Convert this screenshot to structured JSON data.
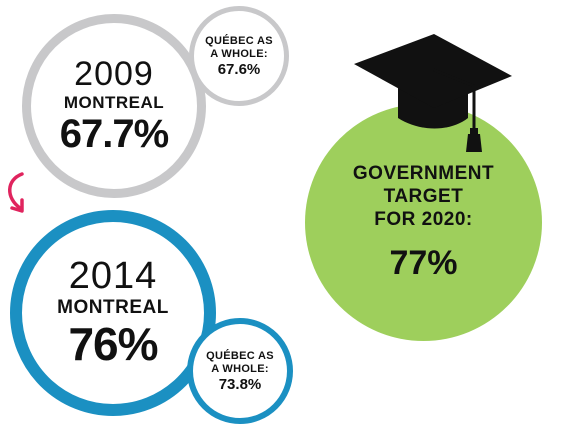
{
  "year_2009": {
    "year": "2009",
    "city": "MONTREAL",
    "rate": "67.7%",
    "quebec_label_line1": "QUÉBEC AS",
    "quebec_label_line2": "A WHOLE:",
    "quebec_rate": "67.6%"
  },
  "year_2014": {
    "year": "2014",
    "city": "MONTREAL",
    "rate": "76%",
    "quebec_label_line1": "QUÉBEC AS",
    "quebec_label_line2": "A WHOLE:",
    "quebec_rate": "73.8%"
  },
  "target": {
    "line1": "GOVERNMENT",
    "line2": "TARGET",
    "line3": "FOR 2020:",
    "rate": "77%"
  },
  "colors": {
    "gray_ring": "#c8c8ca",
    "blue_ring": "#1b90c2",
    "green_fill": "#9ecf5c",
    "arrow": "#e0245e"
  },
  "icons": [
    "graduation-cap-icon",
    "curved-arrow-icon"
  ]
}
